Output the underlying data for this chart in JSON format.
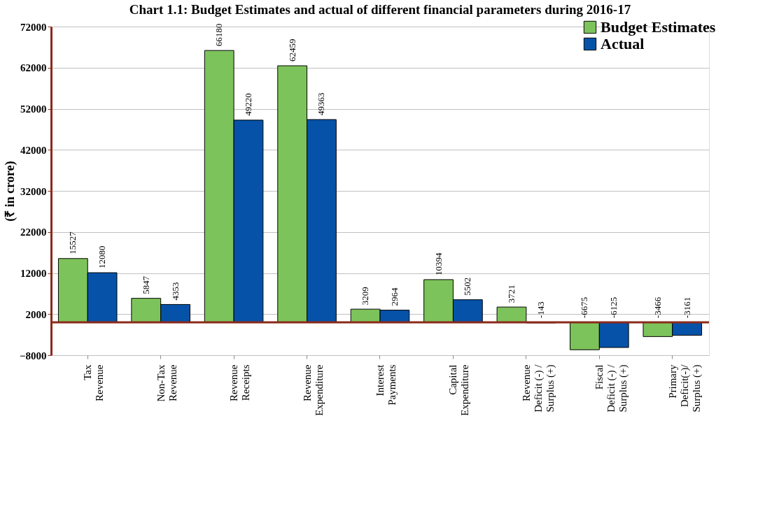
{
  "chart_data": {
    "type": "bar",
    "title": "Chart 1.1: Budget Estimates and actual of different financial parameters during 2016-17",
    "ylabel": "(₹ in crore)",
    "categories": [
      "Tax\nRevenue",
      "Non-Tax\nRevenue",
      "Revenue\nReceipts",
      "Revenue\nExpenditure",
      "Interest\nPayments",
      "Capital\nExpenditure",
      "Revenue\nDeficit (-) /\nSurplus (+)",
      "Fiscal\nDeficit (-) /\nSurplus (+)",
      "Primary\nDeficit(-)/\nSurplus (+)"
    ],
    "series": [
      {
        "name": "Budget Estimates",
        "color": "#7dc35b",
        "values": [
          15527,
          5847,
          66180,
          62459,
          3209,
          10394,
          3721,
          -6675,
          -3466
        ]
      },
      {
        "name": "Actual",
        "color": "#0652a8",
        "values": [
          12080,
          4353,
          49220,
          49363,
          2964,
          5502,
          -143,
          -6125,
          -3161
        ]
      }
    ],
    "ylim": [
      -8000,
      72000
    ],
    "yticks": [
      -8000,
      2000,
      12000,
      22000,
      32000,
      42000,
      52000,
      62000,
      72000
    ],
    "ref_lines": [
      {
        "axis": "y",
        "value": 0,
        "color": "#8b2a1a"
      }
    ],
    "grid": "y",
    "legend": "top right",
    "data_labels": true
  }
}
